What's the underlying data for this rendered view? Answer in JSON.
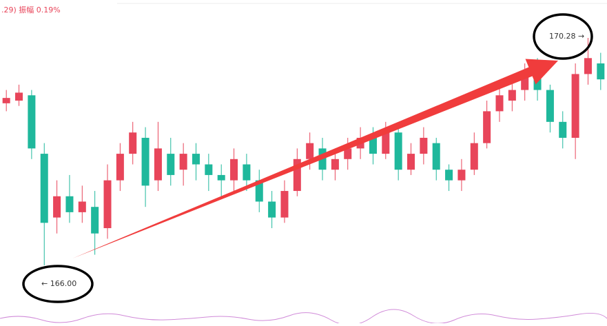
{
  "header": {
    "text": ".29)  振幅 0.19%"
  },
  "chart_data": {
    "type": "candlestick",
    "open": [
      169.05,
      169.1,
      169.2,
      168.1,
      166.9,
      167.3,
      167.0,
      167.1,
      166.7,
      167.6,
      168.1,
      168.4,
      167.6,
      168.1,
      167.8,
      168.1,
      167.9,
      167.7,
      167.6,
      167.9,
      167.6,
      167.2,
      166.9,
      167.4,
      168.0,
      168.2,
      167.8,
      168.0,
      168.2,
      168.4,
      168.1,
      168.5,
      167.8,
      168.1,
      168.3,
      167.8,
      167.6,
      167.8,
      168.3,
      168.9,
      169.1,
      169.3,
      169.6,
      169.3,
      168.7,
      168.4,
      169.6,
      169.8
    ],
    "close": [
      169.15,
      169.25,
      168.2,
      166.8,
      167.3,
      167.0,
      167.2,
      166.6,
      167.6,
      168.1,
      168.5,
      167.5,
      168.2,
      167.7,
      168.1,
      167.9,
      167.7,
      167.6,
      168.0,
      167.6,
      167.2,
      166.9,
      167.4,
      168.0,
      168.3,
      167.8,
      168.0,
      168.2,
      168.4,
      168.1,
      168.5,
      167.8,
      168.1,
      168.4,
      167.8,
      167.6,
      167.8,
      168.3,
      168.9,
      169.2,
      169.3,
      169.6,
      169.3,
      168.7,
      168.4,
      169.6,
      169.9,
      169.5
    ],
    "high": [
      169.3,
      169.4,
      169.3,
      168.3,
      167.6,
      167.7,
      167.5,
      167.4,
      167.9,
      168.3,
      168.7,
      168.6,
      168.7,
      168.4,
      168.3,
      168.3,
      168.1,
      167.9,
      168.2,
      168.1,
      167.8,
      167.4,
      167.6,
      168.2,
      168.5,
      168.4,
      168.2,
      168.4,
      168.6,
      168.6,
      168.7,
      168.6,
      168.3,
      168.6,
      168.4,
      167.9,
      168.0,
      168.5,
      169.1,
      169.4,
      169.5,
      169.8,
      169.9,
      169.4,
      168.9,
      169.8,
      170.28,
      170.0
    ],
    "low": [
      168.9,
      169.0,
      168.0,
      166.0,
      166.6,
      166.8,
      166.8,
      166.2,
      166.5,
      167.4,
      167.9,
      167.1,
      167.4,
      167.5,
      167.5,
      167.6,
      167.4,
      167.3,
      167.4,
      167.4,
      167.0,
      166.7,
      166.8,
      167.3,
      167.8,
      167.6,
      167.6,
      167.8,
      168.0,
      167.9,
      168.0,
      167.6,
      167.7,
      167.9,
      167.6,
      167.4,
      167.4,
      167.7,
      168.2,
      168.7,
      168.9,
      169.1,
      169.1,
      168.5,
      168.2,
      168.0,
      169.4,
      169.3
    ],
    "up_color": "#e8455a",
    "down_color": "#1fb89c",
    "annotations": [
      "170.28 →",
      "← 166.00"
    ]
  }
}
